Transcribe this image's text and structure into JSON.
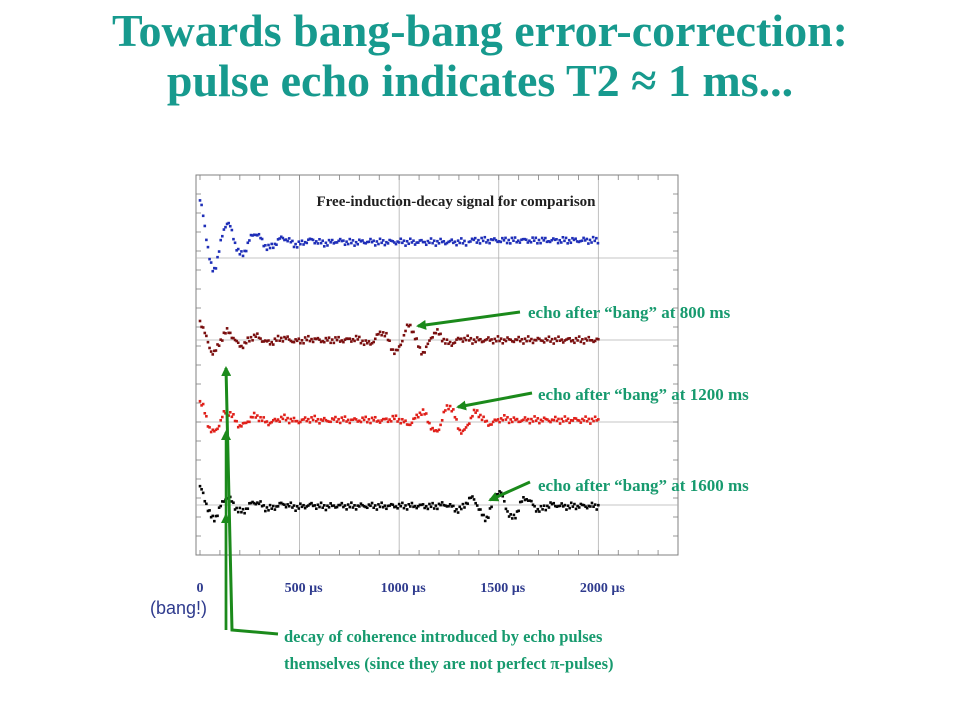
{
  "slide": {
    "title_line1": "Towards bang-bang error-correction:",
    "title_line2": "pulse echo indicates T2 ≈ 1 ms..."
  },
  "colors": {
    "title": "#179a8e",
    "annotation": "#179a6e",
    "arrow": "#1b8a1b",
    "axis_text": "#2f3b8e"
  },
  "chart_data": {
    "type": "scatter",
    "x_tick_labels": [
      "0",
      "500 µs",
      "1000 µs",
      "1500 µs",
      "2000 µs"
    ],
    "xlim": [
      0,
      2400
    ],
    "grid": true,
    "panel_title": "Free-induction-decay signal for comparison",
    "series": [
      {
        "color": "#1f2fb8",
        "segments": [
          [
            0,
            1340
          ],
          [
            1350,
            2000
          ]
        ],
        "amp": 1.0,
        "baseline_shift": [
          0,
          0.04
        ]
      },
      {
        "color": "#7a0f0f",
        "segments": [
          [
            0,
            2000
          ]
        ],
        "amp": 0.45,
        "echo_center": 1050
      },
      {
        "color": "#e0201a",
        "segments": [
          [
            0,
            2000
          ]
        ],
        "amp": 0.45,
        "echo_center": 1250
      },
      {
        "color": "#050505",
        "segments": [
          [
            0,
            2000
          ]
        ],
        "amp": 0.45,
        "echo_center": 1500
      }
    ]
  },
  "annotations": {
    "echo_800": "echo after “bang” at 800 ms",
    "echo_1200": "echo after “bang” at 1200 ms",
    "echo_1600": "echo after “bang” at 1600 ms",
    "bang": "(bang!)",
    "decay_line1": "decay of coherence introduced by echo pulses",
    "decay_line2": "themselves (since they are not perfect π-pulses)"
  }
}
